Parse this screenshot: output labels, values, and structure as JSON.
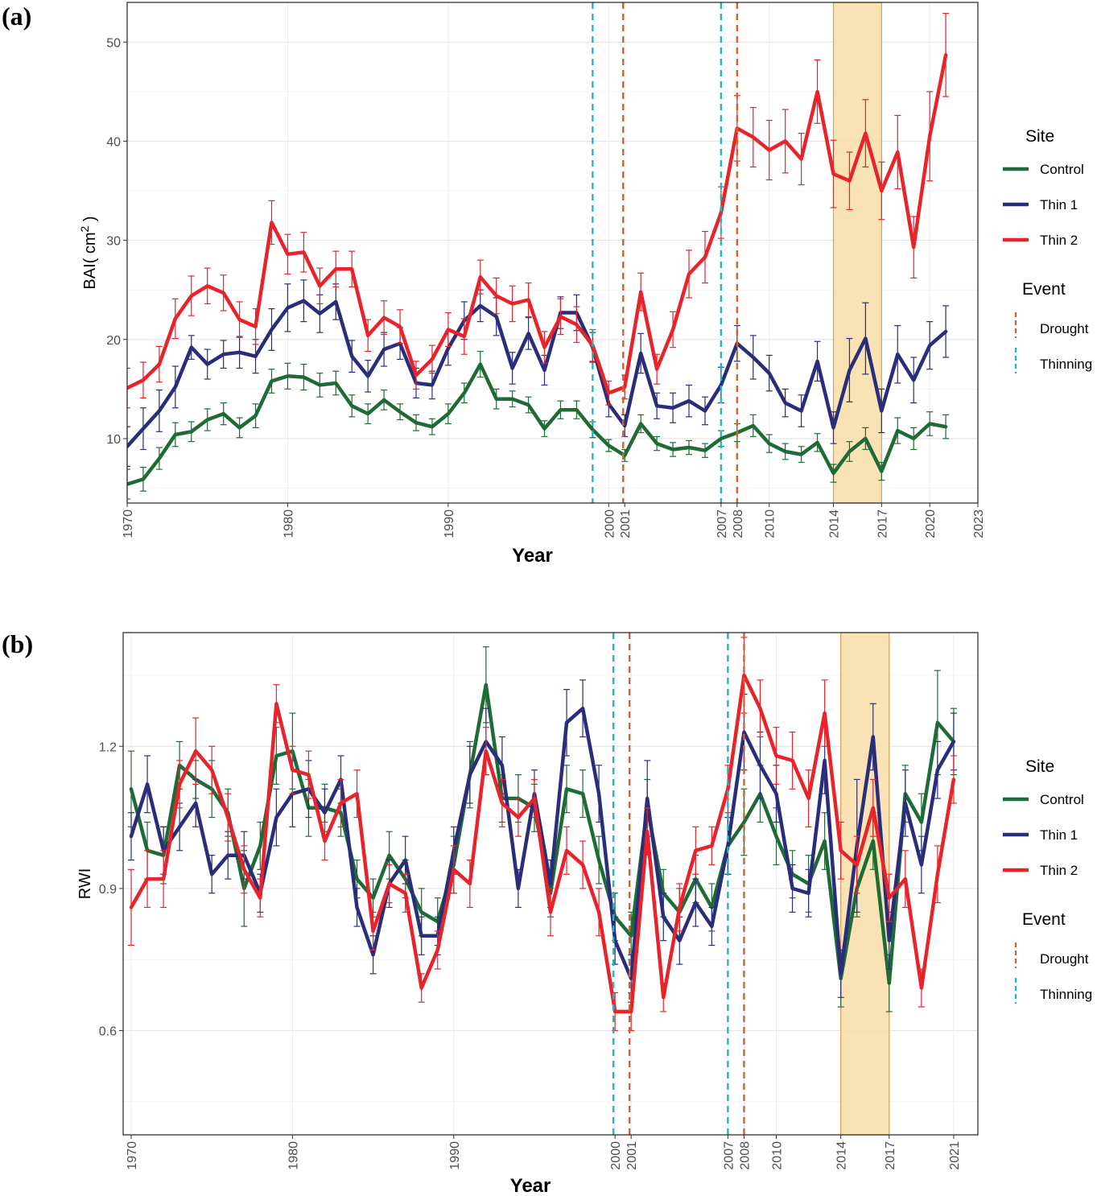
{
  "panels": {
    "a_label": "(a)",
    "b_label": "(b)"
  },
  "chart_data": [
    {
      "type": "line",
      "panel": "(a)",
      "xlabel": "Year",
      "ylabel": "BAI( cm",
      "ylabel_sup": "2",
      "ylabel_close": " )",
      "xlim": [
        1970,
        2023
      ],
      "ylim": [
        3.5,
        54
      ],
      "y_ticks": [
        10,
        20,
        30,
        40,
        50
      ],
      "x_ticks": [
        1970,
        1980,
        1990,
        2000,
        2001,
        2007,
        2008,
        2010,
        2014,
        2017,
        2020,
        2023
      ],
      "drought_shade": [
        2014,
        2017
      ],
      "events": [
        {
          "type": "Thinning",
          "x": 1999.0
        },
        {
          "type": "Drought",
          "x": 2000.9
        },
        {
          "type": "Thinning",
          "x": 2007.0
        },
        {
          "type": "Drought",
          "x": 2008.0
        }
      ],
      "x": [
        1970,
        1971,
        1972,
        1973,
        1974,
        1975,
        1976,
        1977,
        1978,
        1979,
        1980,
        1981,
        1982,
        1983,
        1984,
        1985,
        1986,
        1987,
        1988,
        1989,
        1990,
        1991,
        1992,
        1993,
        1994,
        1995,
        1996,
        1997,
        1998,
        1999,
        2000,
        2001,
        2002,
        2003,
        2004,
        2005,
        2006,
        2007,
        2008,
        2009,
        2010,
        2011,
        2012,
        2013,
        2014,
        2015,
        2016,
        2017,
        2018,
        2019,
        2020,
        2021
      ],
      "series": [
        {
          "name": "Control",
          "color": "#1e6b35",
          "values": [
            5.4,
            5.9,
            8.0,
            10.4,
            10.7,
            11.9,
            12.5,
            11.1,
            12.3,
            15.8,
            16.3,
            16.2,
            15.4,
            15.6,
            13.3,
            12.5,
            13.9,
            12.7,
            11.6,
            11.2,
            12.5,
            14.6,
            17.5,
            14.0,
            14.0,
            13.4,
            11.0,
            12.9,
            12.9,
            10.9,
            9.3,
            8.3,
            11.5,
            9.5,
            8.9,
            9.1,
            8.8,
            10.0,
            10.6,
            11.3,
            9.5,
            8.7,
            8.4,
            9.6,
            6.5,
            8.7,
            10.0,
            6.7,
            10.8,
            10.0,
            11.5,
            11.2
          ],
          "errors": [
            1.5,
            1.2,
            1.1,
            1.2,
            1.0,
            1.1,
            1.1,
            1.0,
            1.2,
            1.2,
            1.3,
            1.3,
            1.2,
            1.2,
            1.1,
            1.0,
            1.0,
            0.8,
            0.8,
            0.8,
            1.0,
            1.0,
            1.3,
            1.0,
            0.8,
            0.8,
            0.8,
            0.9,
            0.9,
            0.8,
            0.6,
            0.6,
            0.9,
            0.7,
            0.7,
            0.7,
            0.7,
            0.8,
            0.9,
            1.1,
            0.9,
            0.8,
            0.8,
            0.9,
            0.9,
            1.0,
            1.1,
            0.9,
            1.3,
            1.1,
            1.2,
            1.2
          ]
        },
        {
          "name": "Thin 1",
          "color": "#2a2e7a",
          "values": [
            9.2,
            11.0,
            12.8,
            15.2,
            19.2,
            17.5,
            18.5,
            18.7,
            18.3,
            21.0,
            23.2,
            23.9,
            22.6,
            23.8,
            18.3,
            16.3,
            19.0,
            19.6,
            15.6,
            15.4,
            19.1,
            21.9,
            23.4,
            22.3,
            17.1,
            20.6,
            16.9,
            22.7,
            22.7,
            19.2,
            13.5,
            11.3,
            18.6,
            13.3,
            13.1,
            13.8,
            12.8,
            15.4,
            19.6,
            18.2,
            16.6,
            13.6,
            12.8,
            17.8,
            11.1,
            16.9,
            20.1,
            12.8,
            18.5,
            15.9,
            19.4,
            20.8
          ],
          "errors": [
            2.0,
            2.1,
            2.1,
            2.1,
            1.2,
            1.5,
            1.4,
            1.6,
            1.7,
            2.1,
            2.4,
            2.1,
            1.9,
            1.8,
            1.6,
            1.6,
            1.7,
            1.6,
            1.5,
            1.4,
            1.7,
            1.9,
            1.6,
            1.9,
            1.6,
            1.6,
            1.5,
            1.6,
            1.8,
            1.5,
            1.3,
            1.1,
            2.0,
            1.3,
            1.5,
            1.6,
            1.4,
            1.8,
            1.8,
            2.2,
            1.8,
            1.4,
            1.6,
            2.0,
            1.6,
            3.2,
            3.6,
            2.2,
            2.9,
            2.3,
            2.4,
            2.6
          ]
        },
        {
          "name": "Thin 2",
          "color": "#e8232a",
          "values": [
            15.1,
            15.9,
            17.5,
            22.1,
            24.4,
            25.4,
            24.7,
            22.0,
            21.3,
            31.8,
            28.6,
            28.8,
            25.4,
            27.1,
            27.1,
            20.4,
            22.2,
            21.3,
            16.4,
            18.0,
            21.0,
            20.3,
            26.3,
            24.4,
            23.6,
            24.0,
            19.2,
            22.3,
            21.5,
            19.4,
            14.6,
            15.2,
            24.8,
            17.0,
            21.0,
            26.6,
            28.3,
            32.8,
            41.3,
            40.4,
            39.1,
            40.0,
            38.2,
            45.0,
            36.7,
            36.0,
            40.8,
            35.0,
            38.9,
            29.3,
            40.5,
            48.7
          ],
          "errors": [
            2.0,
            1.8,
            1.8,
            2.0,
            2.0,
            1.8,
            1.8,
            1.8,
            1.8,
            2.2,
            2.0,
            2.0,
            1.8,
            1.8,
            1.8,
            1.6,
            1.7,
            1.7,
            1.4,
            1.4,
            1.7,
            1.8,
            1.7,
            1.8,
            1.8,
            1.7,
            1.6,
            1.8,
            1.8,
            1.6,
            1.2,
            1.2,
            1.9,
            1.5,
            1.8,
            2.4,
            2.6,
            2.6,
            3.3,
            3.0,
            3.0,
            3.2,
            2.6,
            3.2,
            3.4,
            2.9,
            3.4,
            2.9,
            3.7,
            3.1,
            4.5,
            4.2
          ]
        }
      ],
      "legend": {
        "site_title": "Site",
        "site_items": [
          "Control",
          "Thin 1",
          "Thin 2"
        ],
        "event_title": "Event",
        "event_items": [
          "Drought",
          "Thinning"
        ]
      }
    },
    {
      "type": "line",
      "panel": "(b)",
      "xlabel": "Year",
      "ylabel": "RWI",
      "xlim": [
        1969.5,
        2022.5
      ],
      "ylim": [
        0.38,
        1.44
      ],
      "y_ticks": [
        0.6,
        0.9,
        1.2
      ],
      "x_ticks": [
        1970,
        1980,
        1990,
        2000,
        2001,
        2007,
        2008,
        2010,
        2014,
        2017,
        2021
      ],
      "drought_shade": [
        2014,
        2017
      ],
      "events": [
        {
          "type": "Thinning",
          "x": 1999.9
        },
        {
          "type": "Drought",
          "x": 2000.9
        },
        {
          "type": "Thinning",
          "x": 2007.0
        },
        {
          "type": "Drought",
          "x": 2008.0
        }
      ],
      "x": [
        1970,
        1971,
        1972,
        1973,
        1974,
        1975,
        1976,
        1977,
        1978,
        1979,
        1980,
        1981,
        1982,
        1983,
        1984,
        1985,
        1986,
        1987,
        1988,
        1989,
        1990,
        1991,
        1992,
        1993,
        1994,
        1995,
        1996,
        1997,
        1998,
        1999,
        2000,
        2001,
        2002,
        2003,
        2004,
        2005,
        2006,
        2007,
        2008,
        2009,
        2010,
        2011,
        2012,
        2013,
        2014,
        2015,
        2016,
        2017,
        2018,
        2019,
        2020,
        2021
      ],
      "series": [
        {
          "name": "Control",
          "color": "#1e6b35",
          "values": [
            1.11,
            0.98,
            0.97,
            1.16,
            1.13,
            1.11,
            1.06,
            0.9,
            0.99,
            1.18,
            1.19,
            1.07,
            1.07,
            1.06,
            0.92,
            0.88,
            0.97,
            0.92,
            0.85,
            0.83,
            0.95,
            1.14,
            1.33,
            1.09,
            1.09,
            1.07,
            0.89,
            1.11,
            1.1,
            0.96,
            0.84,
            0.8,
            1.07,
            0.89,
            0.85,
            0.92,
            0.86,
            0.99,
            1.04,
            1.1,
            1.01,
            0.93,
            0.91,
            1.0,
            0.71,
            0.9,
            1.0,
            0.7,
            1.1,
            1.04,
            1.25,
            1.21
          ],
          "errors": [
            0.08,
            0.06,
            0.06,
            0.05,
            0.04,
            0.06,
            0.05,
            0.08,
            0.05,
            0.06,
            0.08,
            0.06,
            0.05,
            0.05,
            0.04,
            0.04,
            0.05,
            0.04,
            0.05,
            0.05,
            0.06,
            0.07,
            0.08,
            0.05,
            0.05,
            0.05,
            0.05,
            0.05,
            0.05,
            0.05,
            0.05,
            0.05,
            0.06,
            0.05,
            0.05,
            0.05,
            0.05,
            0.06,
            0.07,
            0.06,
            0.06,
            0.05,
            0.06,
            0.06,
            0.06,
            0.06,
            0.06,
            0.06,
            0.06,
            0.06,
            0.11,
            0.07
          ]
        },
        {
          "name": "Thin 1",
          "color": "#2a2e7a",
          "values": [
            1.01,
            1.12,
            0.98,
            1.03,
            1.08,
            0.93,
            0.97,
            0.97,
            0.89,
            1.05,
            1.1,
            1.11,
            1.06,
            1.13,
            0.86,
            0.76,
            0.91,
            0.96,
            0.8,
            0.8,
            0.98,
            1.14,
            1.21,
            1.16,
            0.9,
            1.1,
            0.91,
            1.25,
            1.28,
            1.1,
            0.79,
            0.71,
            1.09,
            0.84,
            0.79,
            0.87,
            0.82,
            0.99,
            1.23,
            1.16,
            1.1,
            0.9,
            0.89,
            1.17,
            0.72,
            0.99,
            1.22,
            0.79,
            1.08,
            0.95,
            1.15,
            1.21
          ],
          "errors": [
            0.05,
            0.06,
            0.05,
            0.05,
            0.05,
            0.04,
            0.05,
            0.05,
            0.04,
            0.06,
            0.07,
            0.06,
            0.05,
            0.05,
            0.04,
            0.04,
            0.05,
            0.05,
            0.04,
            0.04,
            0.05,
            0.06,
            0.07,
            0.06,
            0.04,
            0.05,
            0.05,
            0.07,
            0.06,
            0.06,
            0.05,
            0.05,
            0.08,
            0.05,
            0.05,
            0.05,
            0.04,
            0.06,
            0.08,
            0.07,
            0.06,
            0.05,
            0.05,
            0.07,
            0.05,
            0.14,
            0.07,
            0.06,
            0.07,
            0.06,
            0.06,
            0.06
          ]
        },
        {
          "name": "Thin 2",
          "color": "#e8232a",
          "values": [
            0.86,
            0.92,
            0.92,
            1.12,
            1.19,
            1.15,
            1.05,
            0.94,
            0.88,
            1.29,
            1.15,
            1.14,
            1.0,
            1.08,
            1.1,
            0.81,
            0.91,
            0.89,
            0.69,
            0.77,
            0.94,
            0.91,
            1.19,
            1.08,
            1.05,
            1.09,
            0.85,
            0.98,
            0.95,
            0.85,
            0.64,
            0.64,
            1.02,
            0.67,
            0.86,
            0.98,
            0.99,
            1.11,
            1.35,
            1.28,
            1.18,
            1.17,
            1.09,
            1.27,
            0.98,
            0.95,
            1.07,
            0.88,
            0.92,
            0.69,
            0.93,
            1.13
          ],
          "errors": [
            0.08,
            0.06,
            0.06,
            0.05,
            0.07,
            0.05,
            0.05,
            0.05,
            0.04,
            0.04,
            0.05,
            0.05,
            0.04,
            0.05,
            0.05,
            0.04,
            0.04,
            0.04,
            0.03,
            0.04,
            0.05,
            0.05,
            0.05,
            0.05,
            0.04,
            0.04,
            0.05,
            0.05,
            0.05,
            0.05,
            0.04,
            0.04,
            0.05,
            0.03,
            0.05,
            0.05,
            0.04,
            0.05,
            0.08,
            0.06,
            0.06,
            0.06,
            0.06,
            0.07,
            0.06,
            0.06,
            0.06,
            0.05,
            0.06,
            0.04,
            0.06,
            0.05
          ]
        }
      ],
      "legend": {
        "site_title": "Site",
        "site_items": [
          "Control",
          "Thin 1",
          "Thin 2"
        ],
        "event_title": "Event",
        "event_items": [
          "Drought",
          "Thinning"
        ]
      }
    }
  ]
}
